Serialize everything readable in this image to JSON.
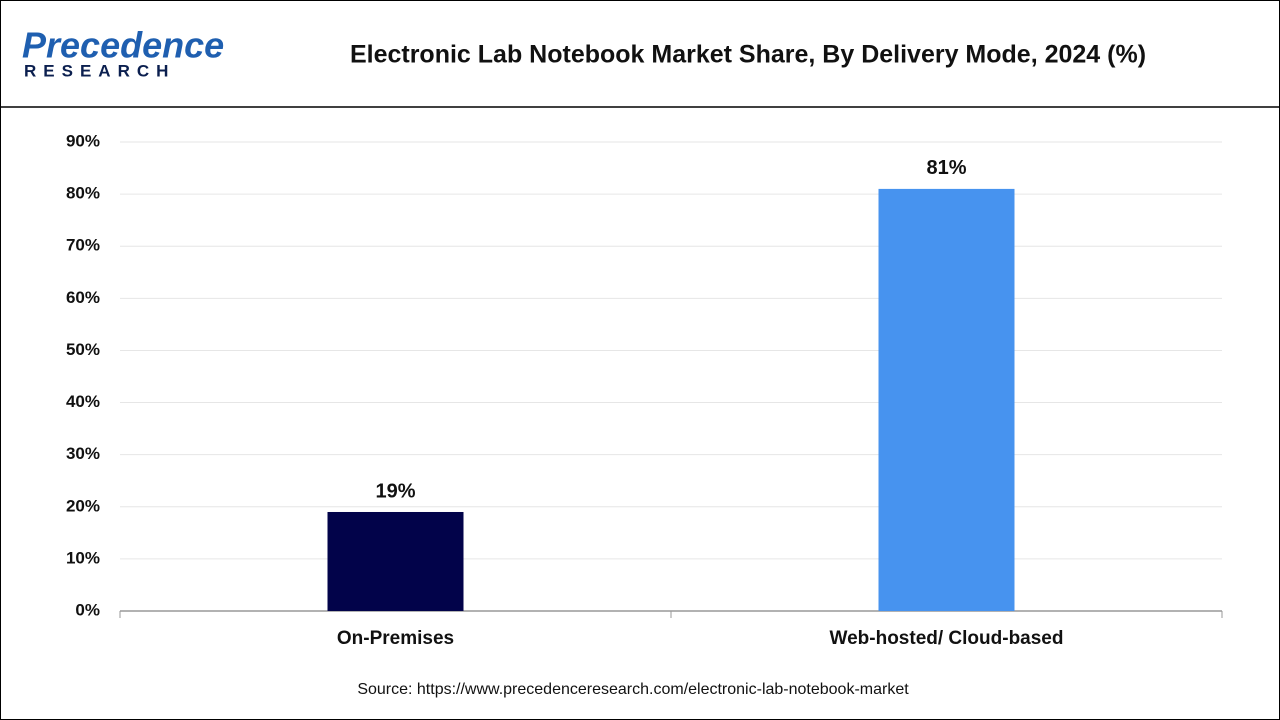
{
  "logo": {
    "name": "Precedence",
    "tagline": "RESEARCH"
  },
  "chart_data": {
    "type": "bar",
    "title": "Electronic Lab Notebook Market Share, By Delivery Mode, 2024 (%)",
    "categories": [
      "On-Premises",
      "Web-hosted/ Cloud-based"
    ],
    "values": [
      19,
      81
    ],
    "value_labels": [
      "19%",
      "81%"
    ],
    "colors": [
      "#02034a",
      "#4793ef"
    ],
    "ylim": [
      0,
      90
    ],
    "yticks": [
      {
        "value": 0,
        "label": "0%"
      },
      {
        "value": 10,
        "label": "10%"
      },
      {
        "value": 20,
        "label": "20%"
      },
      {
        "value": 30,
        "label": "30%"
      },
      {
        "value": 40,
        "label": "40%"
      },
      {
        "value": 50,
        "label": "50%"
      },
      {
        "value": 60,
        "label": "60%"
      },
      {
        "value": 70,
        "label": "70%"
      },
      {
        "value": 80,
        "label": "80%"
      },
      {
        "value": 90,
        "label": "90%"
      }
    ],
    "grid": true,
    "source": "Source: https://www.precedenceresearch.com/electronic-lab-notebook-market"
  }
}
